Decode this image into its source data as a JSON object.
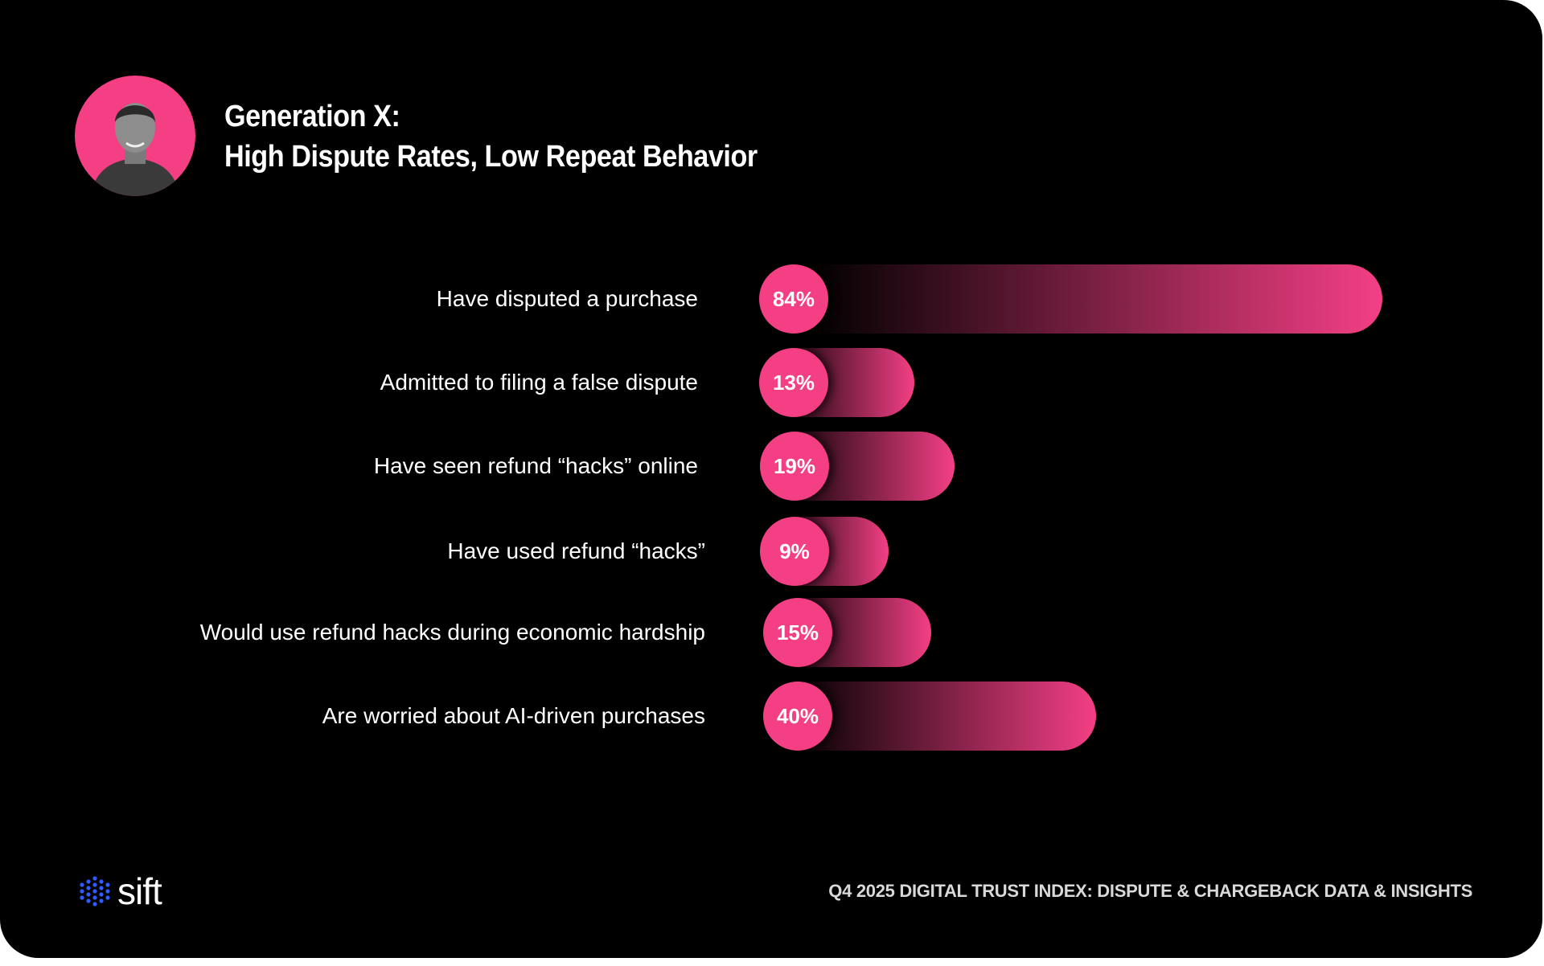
{
  "header": {
    "title_line1": "Generation X:",
    "title_line2": "High Dispute Rates, Low Repeat Behavior"
  },
  "colors": {
    "accent": "#f43f85",
    "background": "#000000",
    "logo_dots": "#2f5bff"
  },
  "chart_data": {
    "type": "bar",
    "orientation": "horizontal",
    "categories": [
      "Have disputed a purchase",
      "Admitted to filing a false dispute",
      "Have seen refund “hacks” online",
      "Have used refund “hacks”",
      "Would use refund hacks during economic hardship",
      "Are worried about AI-driven purchases"
    ],
    "values": [
      84,
      13,
      19,
      9,
      15,
      40
    ],
    "data_labels": [
      "84%",
      "13%",
      "19%",
      "9%",
      "15%",
      "40%"
    ],
    "unit": "%",
    "grid": false
  },
  "footer": {
    "logo_text": "sift",
    "report_title": "Q4 2025 DIGITAL TRUST INDEX: DISPUTE & CHARGEBACK DATA & INSIGHTS"
  }
}
